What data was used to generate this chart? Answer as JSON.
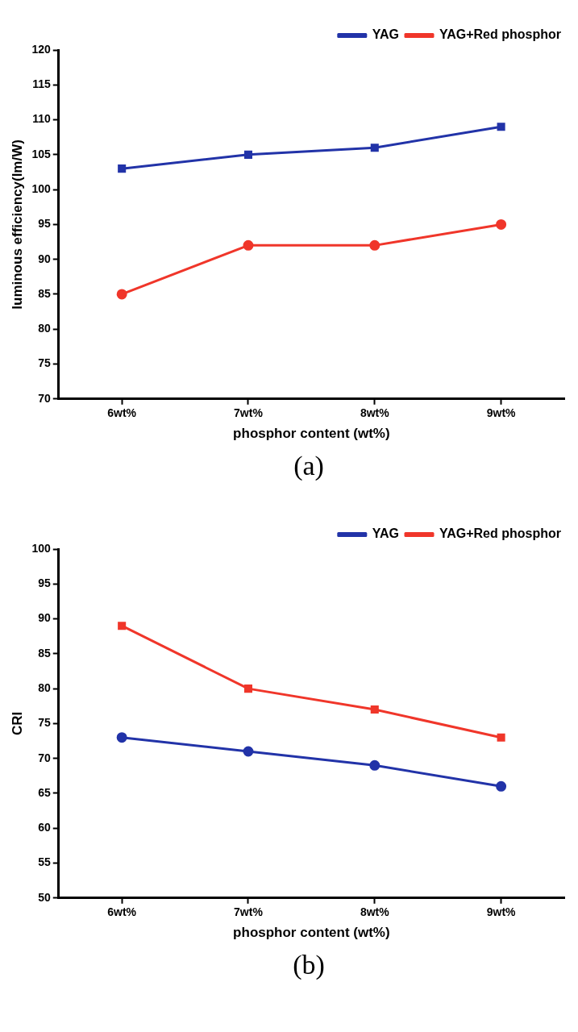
{
  "chart_data": [
    {
      "type": "line",
      "categories": [
        "6wt%",
        "7wt%",
        "8wt%",
        "9wt%"
      ],
      "xlabel": "phosphor content (wt%)",
      "ylabel": "luminous efficiency(lm/W)",
      "ylim": [
        70,
        120
      ],
      "yticks": [
        70,
        75,
        80,
        85,
        90,
        95,
        100,
        105,
        110,
        115,
        120
      ],
      "legend": "top right",
      "grid": false,
      "line_style": "solid",
      "annotations": [
        "(a)"
      ],
      "series": [
        {
          "name": "YAG",
          "color": "#2233a8",
          "marker": "square",
          "values": [
            103,
            105,
            106,
            109
          ]
        },
        {
          "name": "YAG+Red phosphor",
          "color": "#f0362a",
          "marker": "circle",
          "values": [
            85,
            92,
            92,
            95
          ]
        }
      ]
    },
    {
      "type": "line",
      "categories": [
        "6wt%",
        "7wt%",
        "8wt%",
        "9wt%"
      ],
      "xlabel": "phosphor content (wt%)",
      "ylabel": "CRI",
      "ylim": [
        50,
        100
      ],
      "yticks": [
        50,
        55,
        60,
        65,
        70,
        75,
        80,
        85,
        90,
        95,
        100
      ],
      "legend": "top right",
      "grid": false,
      "line_style": "solid",
      "annotations": [
        "(b)"
      ],
      "series": [
        {
          "name": "YAG",
          "color": "#2233a8",
          "marker": "circle",
          "values": [
            73,
            71,
            69,
            66
          ]
        },
        {
          "name": "YAG+Red phosphor",
          "color": "#f0362a",
          "marker": "square",
          "values": [
            89,
            80,
            77,
            73
          ]
        }
      ]
    }
  ]
}
